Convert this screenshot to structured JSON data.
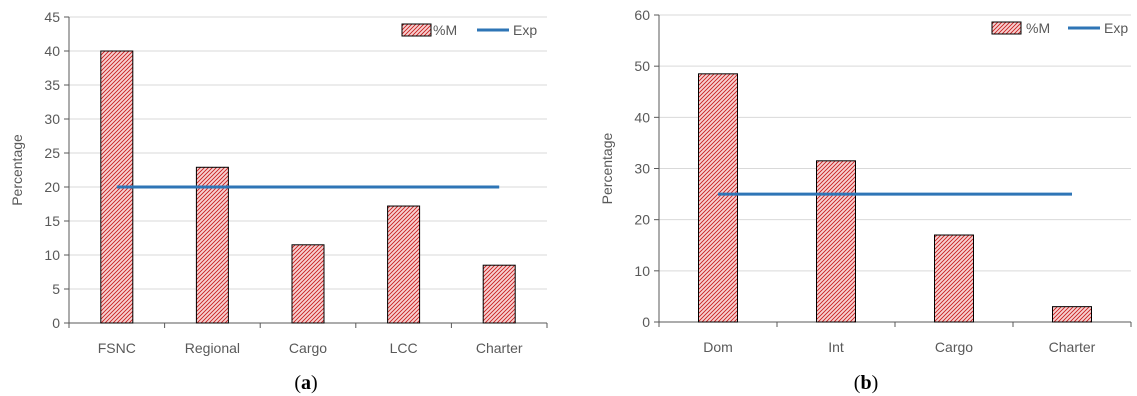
{
  "chart_data": [
    {
      "type": "bar",
      "panel_label": "a",
      "categories": [
        "FSNC",
        "Regional",
        "Cargo",
        "LCC",
        "Charter"
      ],
      "series": [
        {
          "name": "%M",
          "kind": "bar",
          "values": [
            40.0,
            22.9,
            11.5,
            17.2,
            8.5
          ]
        },
        {
          "name": "Exp",
          "kind": "line",
          "values": [
            20,
            20,
            20,
            20,
            20
          ]
        }
      ],
      "ylabel": "Percentage",
      "ylim": [
        0,
        45
      ],
      "yticks": [
        0,
        5,
        10,
        15,
        20,
        25,
        30,
        35,
        40,
        45
      ],
      "grid": true,
      "legend": "top-right"
    },
    {
      "type": "bar",
      "panel_label": "b",
      "categories": [
        "Dom",
        "Int",
        "Cargo",
        "Charter"
      ],
      "series": [
        {
          "name": "%M",
          "kind": "bar",
          "values": [
            48.5,
            31.5,
            17.0,
            3.0
          ]
        },
        {
          "name": "Exp",
          "kind": "line",
          "values": [
            25,
            25,
            25,
            25
          ]
        }
      ],
      "ylabel": "Percentage",
      "ylim": [
        0,
        60
      ],
      "yticks": [
        0,
        10,
        20,
        30,
        40,
        50,
        60
      ],
      "grid": true,
      "legend": "top-right"
    }
  ],
  "colors": {
    "bar_fill": "#f4c6c6",
    "bar_hatch": "#c0000a",
    "bar_edge": "#000000",
    "line": "#2e75b6",
    "grid": "#d9d9d9",
    "axis": "#595959"
  }
}
